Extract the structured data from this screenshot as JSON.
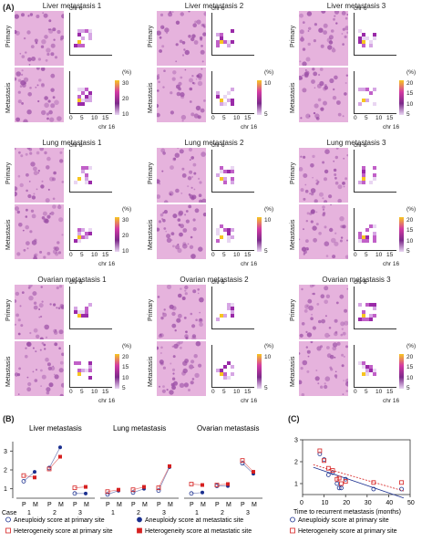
{
  "panel_a": {
    "label": "(A)",
    "row_labels": [
      "Primary",
      "Metastasis"
    ],
    "axis_x": "chr 16",
    "axis_y": "chr 6",
    "unit": "(%)",
    "x_ticks": [
      "0",
      "5",
      "10",
      "15"
    ],
    "groups": [
      {
        "title": "Liver metastasis 1",
        "cbar": [
          "30",
          "20",
          "10"
        ]
      },
      {
        "title": "Liver metastasis 2",
        "cbar": [
          "10",
          "5"
        ]
      },
      {
        "title": "Liver metastasis 3",
        "cbar": [
          "20",
          "15",
          "10",
          "5"
        ]
      },
      {
        "title": "Lung metastasis 1",
        "cbar": [
          "30",
          "20",
          "10"
        ]
      },
      {
        "title": "Lung metastasis 2",
        "cbar": [
          "10",
          "5"
        ]
      },
      {
        "title": "Lung metastasis 3",
        "cbar": [
          "20",
          "15",
          "10",
          "5"
        ]
      },
      {
        "title": "Ovarian metastasis 1",
        "cbar": [
          "20",
          "15",
          "10",
          "5"
        ]
      },
      {
        "title": "Ovarian metastasis 2",
        "cbar": [
          "10",
          "5"
        ]
      },
      {
        "title": "Ovarian metastasis 3",
        "cbar": [
          "20",
          "15",
          "10",
          "5"
        ]
      }
    ]
  },
  "panel_b": {
    "label": "(B)",
    "case_label": "Case",
    "y_ticks": [
      "1",
      "2",
      "3"
    ],
    "pm": [
      "P",
      "M"
    ],
    "cases": [
      "1",
      "2",
      "3"
    ]
  },
  "panel_c": {
    "label": "(C)",
    "xlabel": "Time to recurrent metastasis (months)",
    "x_ticks": [
      "0",
      "10",
      "20",
      "30",
      "40",
      "50"
    ],
    "y_ticks": [
      "1",
      "2",
      "3"
    ]
  },
  "legend": {
    "b1": "Aneuploidy score at primary site",
    "b2": "Aneuploidy score at metastatic site",
    "b3": "Heterogeneity score at primary site",
    "b4": "Heterogeneity score at metastatic site",
    "c1": "Aneuploidy score at primary site",
    "c2": "Heterogeneity score at primary site"
  },
  "colors": {
    "aneuploidy": "#1a2f8f",
    "heterogeneity": "#d62020",
    "tissue_light": "#e6b3dd",
    "tissue_dark": "#9b4fa6"
  },
  "chart_data": [
    {
      "type": "line",
      "title": "Liver metastasis",
      "categories": [
        "1",
        "2",
        "3"
      ],
      "series": [
        {
          "name": "Aneuploidy score at primary site",
          "values": [
            1.4,
            2.1,
            0.75
          ]
        },
        {
          "name": "Aneuploidy score at metastatic site",
          "values": [
            1.9,
            3.2,
            0.75
          ]
        },
        {
          "name": "Heterogeneity score at primary site",
          "values": [
            1.7,
            2.05,
            1.05
          ]
        },
        {
          "name": "Heterogeneity score at metastatic site",
          "values": [
            1.6,
            2.7,
            1.1
          ]
        }
      ],
      "ylim": [
        0.5,
        3.5
      ]
    },
    {
      "type": "line",
      "title": "Lung metastasis",
      "categories": [
        "1",
        "2",
        "3"
      ],
      "series": [
        {
          "name": "Aneuploidy score at primary site",
          "values": [
            0.7,
            0.8,
            0.9
          ]
        },
        {
          "name": "Aneuploidy score at metastatic site",
          "values": [
            0.9,
            1.0,
            2.15
          ]
        },
        {
          "name": "Heterogeneity score at primary site",
          "values": [
            0.85,
            0.95,
            1.05
          ]
        },
        {
          "name": "Heterogeneity score at metastatic site",
          "values": [
            0.95,
            1.1,
            2.2
          ]
        }
      ],
      "ylim": [
        0.5,
        3.5
      ]
    },
    {
      "type": "line",
      "title": "Ovarian metastasis",
      "categories": [
        "1",
        "2",
        "3"
      ],
      "series": [
        {
          "name": "Aneuploidy score at primary site",
          "values": [
            0.75,
            1.15,
            2.35
          ]
        },
        {
          "name": "Aneuploidy score at metastatic site",
          "values": [
            0.8,
            1.15,
            1.8
          ]
        },
        {
          "name": "Heterogeneity score at primary site",
          "values": [
            1.25,
            1.2,
            2.5
          ]
        },
        {
          "name": "Heterogeneity score at metastatic site",
          "values": [
            1.2,
            1.25,
            1.9
          ]
        }
      ],
      "ylim": [
        0.5,
        3.5
      ]
    },
    {
      "type": "scatter",
      "xlabel": "Time to recurrent metastasis (months)",
      "xlim": [
        0,
        50
      ],
      "ylim": [
        0.5,
        3.0
      ],
      "series": [
        {
          "name": "Aneuploidy score at primary site",
          "x": [
            8,
            10,
            12,
            14,
            16,
            17,
            18,
            20,
            33,
            46
          ],
          "y": [
            2.35,
            2.1,
            1.4,
            1.5,
            1.0,
            0.8,
            0.8,
            1.2,
            0.75,
            0.75
          ]
        },
        {
          "name": "Heterogeneity score at primary site",
          "x": [
            8,
            10,
            12,
            14,
            16,
            17,
            18,
            20,
            33,
            46
          ],
          "y": [
            2.5,
            2.05,
            1.7,
            1.6,
            1.2,
            1.25,
            1.0,
            1.1,
            1.05,
            1.05
          ]
        }
      ]
    }
  ]
}
